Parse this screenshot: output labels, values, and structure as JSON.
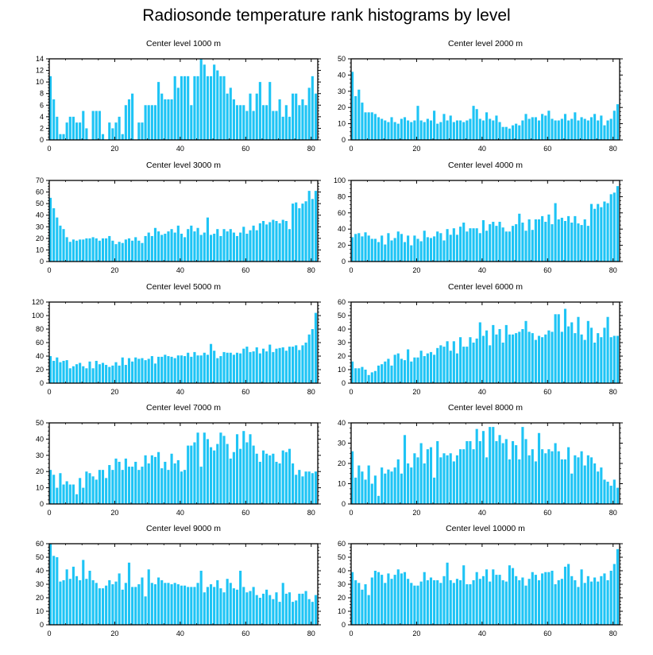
{
  "title": "Radiosonde temperature rank histograms by level",
  "colors": {
    "bar": "#1ec4f5",
    "frame": "#000000"
  },
  "chart_data": [
    {
      "type": "bar",
      "title": "Center level 1000 m",
      "xlabel": "",
      "ylabel": "",
      "xlim": [
        0,
        82
      ],
      "xticks": [
        0,
        20,
        40,
        60,
        80
      ],
      "ylim": [
        0,
        14
      ],
      "yticks": [
        0,
        2,
        4,
        6,
        8,
        10,
        12,
        14
      ],
      "values": [
        11,
        7,
        4,
        1,
        1,
        3,
        4,
        4,
        3,
        3,
        5,
        2,
        0,
        5,
        5,
        5,
        1,
        0,
        3,
        2,
        3,
        4,
        1,
        6,
        7,
        8,
        0,
        3,
        3,
        6,
        6,
        6,
        6,
        10,
        8,
        7,
        7,
        7,
        11,
        9,
        11,
        11,
        11,
        6,
        11,
        11,
        14,
        13,
        11,
        11,
        13,
        12,
        11,
        11,
        8,
        9,
        7,
        6,
        6,
        6,
        5,
        8,
        5,
        8,
        10,
        6,
        6,
        10,
        5,
        5,
        7,
        4,
        6,
        4,
        8,
        8,
        6,
        7,
        6,
        9,
        11,
        8
      ]
    },
    {
      "type": "bar",
      "title": "Center level 2000 m",
      "xlabel": "",
      "ylabel": "",
      "xlim": [
        0,
        82
      ],
      "xticks": [
        0,
        20,
        40,
        60,
        80
      ],
      "ylim": [
        0,
        50
      ],
      "yticks": [
        0,
        10,
        20,
        30,
        40,
        50
      ],
      "values": [
        42,
        27,
        31,
        23,
        17,
        17,
        17,
        16,
        14,
        13,
        12,
        11,
        14,
        11,
        10,
        13,
        14,
        12,
        11,
        12,
        21,
        12,
        11,
        13,
        12,
        18,
        10,
        11,
        16,
        12,
        15,
        11,
        12,
        12,
        11,
        12,
        13,
        21,
        19,
        13,
        12,
        17,
        13,
        12,
        15,
        11,
        8,
        8,
        7,
        9,
        10,
        9,
        12,
        16,
        13,
        14,
        14,
        12,
        16,
        15,
        18,
        13,
        12,
        12,
        13,
        16,
        12,
        13,
        17,
        12,
        14,
        13,
        12,
        14,
        16,
        12,
        15,
        9,
        12,
        13,
        18,
        22
      ]
    },
    {
      "type": "bar",
      "title": "Center level 3000 m",
      "xlabel": "",
      "ylabel": "",
      "xlim": [
        0,
        82
      ],
      "xticks": [
        0,
        20,
        40,
        60,
        80
      ],
      "ylim": [
        0,
        70
      ],
      "yticks": [
        0,
        10,
        20,
        30,
        40,
        50,
        60,
        70
      ],
      "values": [
        55,
        46,
        38,
        31,
        28,
        21,
        17,
        19,
        18,
        19,
        19,
        20,
        20,
        21,
        20,
        18,
        20,
        20,
        22,
        18,
        15,
        17,
        16,
        19,
        20,
        18,
        21,
        18,
        16,
        22,
        25,
        22,
        29,
        26,
        23,
        24,
        26,
        28,
        25,
        31,
        24,
        21,
        28,
        31,
        26,
        29,
        23,
        25,
        38,
        23,
        24,
        28,
        22,
        28,
        26,
        28,
        25,
        22,
        25,
        30,
        24,
        27,
        31,
        27,
        33,
        35,
        32,
        34,
        36,
        35,
        33,
        36,
        35,
        28,
        50,
        51,
        46,
        50,
        52,
        61,
        54,
        61
      ]
    },
    {
      "type": "bar",
      "title": "Center level 4000 m",
      "xlabel": "",
      "ylabel": "",
      "xlim": [
        0,
        82
      ],
      "xticks": [
        0,
        20,
        40,
        60,
        80
      ],
      "ylim": [
        0,
        100
      ],
      "yticks": [
        0,
        20,
        40,
        60,
        80,
        100
      ],
      "values": [
        30,
        34,
        35,
        31,
        36,
        32,
        28,
        28,
        24,
        32,
        21,
        35,
        26,
        29,
        37,
        34,
        24,
        32,
        20,
        32,
        28,
        25,
        38,
        30,
        29,
        31,
        37,
        35,
        26,
        40,
        33,
        41,
        33,
        43,
        48,
        37,
        41,
        41,
        41,
        35,
        51,
        38,
        46,
        49,
        44,
        49,
        42,
        37,
        37,
        44,
        46,
        59,
        48,
        38,
        52,
        39,
        52,
        52,
        56,
        49,
        58,
        46,
        72,
        52,
        54,
        50,
        56,
        48,
        56,
        47,
        45,
        52,
        44,
        71,
        65,
        71,
        67,
        74,
        72,
        83,
        85,
        93
      ]
    },
    {
      "type": "bar",
      "title": "Center level 5000 m",
      "xlabel": "",
      "ylabel": "",
      "xlim": [
        0,
        82
      ],
      "xticks": [
        0,
        20,
        40,
        60,
        80
      ],
      "ylim": [
        0,
        120
      ],
      "yticks": [
        0,
        20,
        40,
        60,
        80,
        100,
        120
      ],
      "values": [
        40,
        33,
        38,
        31,
        33,
        34,
        22,
        25,
        28,
        30,
        25,
        22,
        32,
        22,
        33,
        28,
        30,
        27,
        24,
        26,
        31,
        26,
        38,
        27,
        37,
        32,
        38,
        36,
        37,
        34,
        36,
        40,
        29,
        39,
        39,
        42,
        40,
        39,
        37,
        41,
        41,
        40,
        45,
        39,
        46,
        41,
        41,
        45,
        42,
        58,
        48,
        37,
        40,
        46,
        45,
        45,
        42,
        45,
        44,
        51,
        54,
        46,
        47,
        53,
        44,
        51,
        47,
        57,
        46,
        51,
        52,
        53,
        48,
        54,
        54,
        56,
        49,
        56,
        60,
        72,
        80,
        104
      ]
    },
    {
      "type": "bar",
      "title": "Center level 6000 m",
      "xlabel": "",
      "ylabel": "",
      "xlim": [
        0,
        82
      ],
      "xticks": [
        0,
        20,
        40,
        60,
        80
      ],
      "ylim": [
        0,
        60
      ],
      "yticks": [
        0,
        10,
        20,
        30,
        40,
        50,
        60
      ],
      "values": [
        16,
        11,
        11,
        12,
        10,
        6,
        8,
        9,
        13,
        14,
        16,
        18,
        13,
        21,
        22,
        18,
        17,
        25,
        16,
        19,
        19,
        24,
        20,
        22,
        23,
        21,
        26,
        28,
        27,
        31,
        24,
        31,
        22,
        34,
        27,
        27,
        34,
        30,
        33,
        45,
        35,
        39,
        28,
        43,
        36,
        40,
        30,
        43,
        36,
        36,
        37,
        38,
        40,
        46,
        38,
        37,
        32,
        35,
        34,
        36,
        39,
        38,
        51,
        51,
        38,
        55,
        42,
        45,
        37,
        49,
        36,
        32,
        46,
        41,
        30,
        37,
        34,
        41,
        49,
        34,
        35,
        35
      ]
    },
    {
      "type": "bar",
      "title": "Center level 7000 m",
      "xlabel": "",
      "ylabel": "",
      "xlim": [
        0,
        82
      ],
      "xticks": [
        0,
        20,
        40,
        60,
        80
      ],
      "ylim": [
        0,
        50
      ],
      "yticks": [
        0,
        10,
        20,
        30,
        40,
        50
      ],
      "values": [
        21,
        18,
        10,
        19,
        12,
        14,
        12,
        12,
        6,
        16,
        10,
        20,
        19,
        17,
        15,
        21,
        21,
        16,
        24,
        21,
        28,
        26,
        21,
        28,
        23,
        23,
        26,
        21,
        23,
        30,
        25,
        30,
        29,
        32,
        22,
        26,
        21,
        31,
        25,
        27,
        20,
        21,
        36,
        36,
        38,
        44,
        23,
        44,
        40,
        35,
        33,
        37,
        44,
        42,
        37,
        28,
        32,
        43,
        34,
        45,
        38,
        43,
        36,
        31,
        26,
        33,
        31,
        30,
        31,
        26,
        25,
        33,
        32,
        34,
        25,
        18,
        21,
        17,
        20,
        20,
        19,
        20
      ]
    },
    {
      "type": "bar",
      "title": "Center level 8000 m",
      "xlabel": "",
      "ylabel": "",
      "xlim": [
        0,
        82
      ],
      "xticks": [
        0,
        20,
        40,
        60,
        80
      ],
      "ylim": [
        0,
        40
      ],
      "yticks": [
        0,
        10,
        20,
        30,
        40
      ],
      "values": [
        26,
        13,
        19,
        16,
        12,
        19,
        10,
        14,
        4,
        18,
        15,
        17,
        16,
        18,
        22,
        15,
        34,
        20,
        18,
        25,
        23,
        30,
        20,
        27,
        28,
        13,
        31,
        23,
        25,
        24,
        25,
        21,
        24,
        27,
        27,
        31,
        31,
        27,
        37,
        31,
        36,
        23,
        38,
        38,
        31,
        34,
        30,
        32,
        22,
        31,
        29,
        22,
        38,
        32,
        24,
        27,
        21,
        35,
        27,
        25,
        27,
        26,
        30,
        26,
        22,
        22,
        28,
        15,
        24,
        23,
        26,
        19,
        24,
        23,
        20,
        16,
        18,
        12,
        11,
        9,
        12,
        8
      ]
    },
    {
      "type": "bar",
      "title": "Center level 9000 m",
      "xlabel": "",
      "ylabel": "",
      "xlim": [
        0,
        82
      ],
      "xticks": [
        0,
        20,
        40,
        60,
        80
      ],
      "ylim": [
        0,
        60
      ],
      "yticks": [
        0,
        10,
        20,
        30,
        40,
        50,
        60
      ],
      "values": [
        60,
        51,
        50,
        32,
        33,
        41,
        34,
        43,
        36,
        33,
        48,
        34,
        40,
        33,
        31,
        27,
        27,
        29,
        33,
        30,
        32,
        38,
        26,
        31,
        46,
        28,
        28,
        30,
        35,
        21,
        41,
        31,
        30,
        35,
        33,
        31,
        31,
        30,
        31,
        30,
        29,
        29,
        28,
        28,
        28,
        31,
        40,
        24,
        28,
        30,
        28,
        33,
        27,
        24,
        34,
        31,
        27,
        26,
        40,
        28,
        24,
        25,
        28,
        22,
        20,
        23,
        26,
        22,
        19,
        24,
        17,
        31,
        23,
        24,
        17,
        18,
        23,
        23,
        25,
        19,
        17,
        22
      ]
    },
    {
      "type": "bar",
      "title": "Center level 10000 m",
      "xlabel": "",
      "ylabel": "",
      "xlim": [
        0,
        82
      ],
      "xticks": [
        0,
        20,
        40,
        60,
        80
      ],
      "ylim": [
        0,
        60
      ],
      "yticks": [
        0,
        10,
        20,
        30,
        40,
        50,
        60
      ],
      "values": [
        39,
        33,
        31,
        26,
        30,
        22,
        35,
        40,
        39,
        37,
        31,
        38,
        34,
        37,
        41,
        38,
        39,
        34,
        31,
        29,
        29,
        32,
        39,
        33,
        35,
        33,
        33,
        31,
        36,
        46,
        33,
        31,
        34,
        33,
        44,
        30,
        30,
        33,
        39,
        34,
        36,
        41,
        32,
        41,
        37,
        37,
        33,
        32,
        44,
        42,
        36,
        33,
        35,
        29,
        34,
        39,
        37,
        33,
        38,
        39,
        39,
        40,
        30,
        33,
        34,
        43,
        45,
        36,
        33,
        28,
        41,
        31,
        36,
        32,
        35,
        32,
        36,
        38,
        33,
        40,
        45,
        56
      ]
    }
  ]
}
